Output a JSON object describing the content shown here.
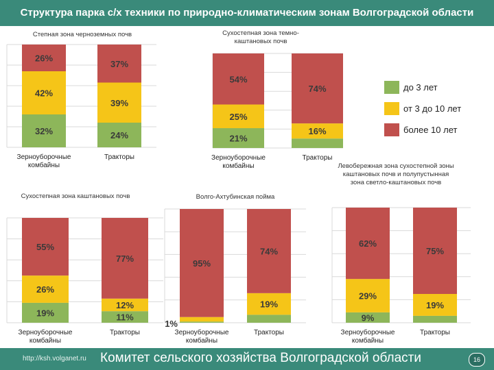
{
  "header": {
    "title": "Структура парка с/х техники по природно-климатическим зонам Волгоградской области"
  },
  "colors": {
    "young": "#8db65a",
    "mid": "#f5c518",
    "old": "#c0504d",
    "header": "#3a8a7a",
    "grid": "#d9d9d9",
    "label": "#3a3a3a"
  },
  "legend": {
    "items": [
      {
        "label": "до 3 лет",
        "color": "#8db65a"
      },
      {
        "label": "от 3 до 10 лет",
        "color": "#f5c518"
      },
      {
        "label": "более 10 лет",
        "color": "#c0504d"
      }
    ]
  },
  "chart_data": [
    {
      "type": "bar",
      "stacked": true,
      "percent": true,
      "title": "Степная зона черноземных почв",
      "categories": [
        "Зерноуборочные комбайны",
        "Тракторы"
      ],
      "series": [
        {
          "name": "до 3 лет",
          "values": [
            32,
            24
          ]
        },
        {
          "name": "от 3 до 10 лет",
          "values": [
            42,
            39
          ]
        },
        {
          "name": "более 10 лет",
          "values": [
            26,
            37
          ]
        }
      ],
      "ylim": [
        0,
        100
      ]
    },
    {
      "type": "bar",
      "stacked": true,
      "percent": true,
      "title": "Сухостепная зона темно-каштановых почв",
      "categories": [
        "Зерноуборочные комбайны",
        "Тракторы"
      ],
      "series": [
        {
          "name": "до 3 лет",
          "values": [
            21,
            10
          ]
        },
        {
          "name": "от 3 до 10 лет",
          "values": [
            25,
            16
          ]
        },
        {
          "name": "более 10 лет",
          "values": [
            54,
            74
          ]
        }
      ],
      "ylim": [
        0,
        100
      ]
    },
    {
      "type": "bar",
      "stacked": true,
      "percent": true,
      "title": "Сухостепная зона каштановых почв",
      "categories": [
        "Зерноуборочные комбайны",
        "Тракторы"
      ],
      "series": [
        {
          "name": "до 3 лет",
          "values": [
            19,
            11
          ]
        },
        {
          "name": "от 3 до 10 лет",
          "values": [
            26,
            12
          ]
        },
        {
          "name": "более 10 лет",
          "values": [
            55,
            77
          ]
        }
      ],
      "ylim": [
        0,
        100
      ]
    },
    {
      "type": "bar",
      "stacked": true,
      "percent": true,
      "title": "Волго-Ахтубинская пойма",
      "categories": [
        "Зерноуборочные комбайны",
        "Тракторы"
      ],
      "series": [
        {
          "name": "до 3 лет",
          "values": [
            1,
            7
          ]
        },
        {
          "name": "от 3 до 10 лет",
          "values": [
            4,
            19
          ]
        },
        {
          "name": "более 10 лет",
          "values": [
            95,
            74
          ]
        }
      ],
      "ylim": [
        0,
        100
      ]
    },
    {
      "type": "bar",
      "stacked": true,
      "percent": true,
      "title": "Левобережная зона сухостепной зоны каштановых почв и полупустынная зона светло-каштановых почв",
      "categories": [
        "Зерноуборочные комбайны",
        "Тракторы"
      ],
      "series": [
        {
          "name": "до 3 лет",
          "values": [
            9,
            6
          ]
        },
        {
          "name": "от 3 до 10 лет",
          "values": [
            29,
            19
          ]
        },
        {
          "name": "более 10 лет",
          "values": [
            62,
            75
          ]
        }
      ],
      "ylim": [
        0,
        100
      ]
    }
  ],
  "footer": {
    "url": "http://ksh.volganet.ru",
    "org": "Комитет сельского хозяйства Волгоградской области",
    "page": "16"
  }
}
